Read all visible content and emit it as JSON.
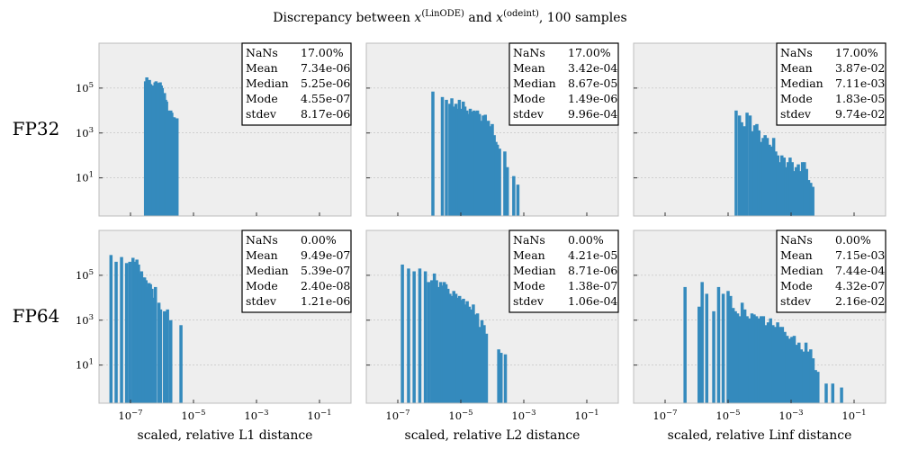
{
  "figure": {
    "title_parts": {
      "pre": "Discrepancy between ",
      "x1": "x",
      "x1_sup": "(LinODE)",
      "mid": " and ",
      "x2": "x",
      "x2_sup": "(odeint)",
      "post": ", 100 samples"
    },
    "row_labels": [
      "FP32",
      "FP64"
    ],
    "column_xlabels": [
      "scaled, relative L1 distance",
      "scaled, relative L2 distance",
      "scaled, relative Linf distance"
    ],
    "stat_keys": [
      "NaNs",
      "Mean",
      "Median",
      "Mode",
      "stdev"
    ],
    "x_tick_labels": [
      {
        "base": "10",
        "exp": "−7"
      },
      {
        "base": "10",
        "exp": "−5"
      },
      {
        "base": "10",
        "exp": "−3"
      },
      {
        "base": "10",
        "exp": "−1"
      }
    ],
    "y_tick_labels": [
      {
        "base": "10",
        "exp": "5"
      },
      {
        "base": "10",
        "exp": "3"
      },
      {
        "base": "10",
        "exp": "1"
      }
    ],
    "colors": {
      "bar": "#348abd",
      "panel_bg": "#eeeeee",
      "panel_border": "#bcbcbc",
      "grid": "#b2b2b2"
    }
  },
  "chart_data": [
    {
      "type": "bar",
      "row": "FP32",
      "xlabel": "",
      "xscale": "log",
      "yscale": "log",
      "xlim": [
        1e-08,
        1
      ],
      "ylim": [
        0.2,
        10000000.0
      ],
      "grid": true,
      "stats": [
        "17.00%",
        "7.34e-06",
        "5.25e-06",
        "4.55e-07",
        "8.17e-06"
      ],
      "bars": [
        [
          3e-07,
          200000.0
        ],
        [
          3.3e-07,
          300000.0
        ],
        [
          3.7e-07,
          150000.0
        ],
        [
          4e-07,
          230000.0
        ],
        [
          4.4e-07,
          150000.0
        ],
        [
          4.9e-07,
          130000.0
        ],
        [
          5.4e-07,
          80000.0
        ],
        [
          6e-07,
          180000.0
        ],
        [
          6.5e-07,
          200000.0
        ],
        [
          7e-07,
          160000.0
        ],
        [
          7.5e-07,
          170000.0
        ],
        [
          8.1e-07,
          100000.0
        ],
        [
          8.8e-07,
          180000.0
        ],
        [
          9.5e-07,
          130000.0
        ],
        [
          1.02e-06,
          100000.0
        ],
        [
          1.1e-06,
          40000.0
        ],
        [
          1.2e-06,
          60000.0
        ],
        [
          1.3e-06,
          30000.0
        ],
        [
          1.4e-06,
          25000.0
        ],
        [
          1.55e-06,
          10000.0
        ],
        [
          1.7e-06,
          9000.0
        ],
        [
          1.9e-06,
          10000.0
        ],
        [
          2.05e-06,
          8000.0
        ],
        [
          2.2e-06,
          5000.0
        ],
        [
          2.45e-06,
          5000.0
        ],
        [
          3e-06,
          4500.0
        ]
      ]
    },
    {
      "type": "bar",
      "row": "FP32",
      "xlabel": "",
      "xscale": "log",
      "yscale": "log",
      "xlim": [
        1e-08,
        1
      ],
      "ylim": [
        0.2,
        10000000.0
      ],
      "grid": true,
      "stats": [
        "17.00%",
        "3.42e-04",
        "8.67e-05",
        "1.49e-06",
        "9.96e-04"
      ],
      "bars": [
        [
          1.3e-06,
          70000.0
        ],
        [
          2.6e-06,
          40000.0
        ],
        [
          3.5e-06,
          30000.0
        ],
        [
          4.5e-06,
          20000.0
        ],
        [
          5.2e-06,
          35000.0
        ],
        [
          6e-06,
          15000.0
        ],
        [
          7e-06,
          20000.0
        ],
        [
          8e-06,
          12000.0
        ],
        [
          9e-06,
          30000.0
        ],
        [
          1.05e-05,
          12000.0
        ],
        [
          1.2e-05,
          25000.0
        ],
        [
          1.35e-05,
          15000.0
        ],
        [
          1.55e-05,
          10000.0
        ],
        [
          1.75e-05,
          7000.0
        ],
        [
          2e-05,
          12000.0
        ],
        [
          2.3e-05,
          9000.0
        ],
        [
          2.65e-05,
          10000.0
        ],
        [
          3e-05,
          9000.0
        ],
        [
          3.4e-05,
          10000.0
        ],
        [
          3.9e-05,
          7000.0
        ],
        [
          4.5e-05,
          3500.0
        ],
        [
          5.2e-05,
          6000.0
        ],
        [
          6e-05,
          6500.0
        ],
        [
          7.5e-05,
          3500.0
        ],
        [
          8.5e-05,
          2000.0
        ],
        [
          0.0001,
          2500.0
        ],
        [
          0.000115,
          800.0
        ],
        [
          0.00013,
          400.0
        ],
        [
          0.000145,
          300.0
        ],
        [
          0.00017,
          200.0
        ],
        [
          0.00025,
          150.0
        ],
        [
          0.0003,
          30.0
        ],
        [
          0.00048,
          12.0
        ],
        [
          0.00065,
          5.0
        ]
      ]
    },
    {
      "type": "bar",
      "row": "FP32",
      "xlabel": "",
      "xscale": "log",
      "yscale": "log",
      "xlim": [
        1e-08,
        1
      ],
      "ylim": [
        0.2,
        10000000.0
      ],
      "grid": true,
      "stats": [
        "17.00%",
        "3.87e-02",
        "7.11e-03",
        "1.83e-05",
        "9.74e-02"
      ],
      "bars": [
        [
          1.8e-05,
          10000.0
        ],
        [
          2.3e-05,
          6000.0
        ],
        [
          2.7e-05,
          3000.0
        ],
        [
          3.3e-05,
          2000.0
        ],
        [
          4e-05,
          8000.0
        ],
        [
          5e-05,
          6000.0
        ],
        [
          6e-05,
          1200.0
        ],
        [
          7e-05,
          2200.0
        ],
        [
          8.2e-05,
          2500.0
        ],
        [
          9.5e-05,
          1300.0
        ],
        [
          0.000112,
          400.0
        ],
        [
          0.00013,
          600.0
        ],
        [
          0.00015,
          800.0
        ],
        [
          0.000175,
          600.0
        ],
        [
          0.000205,
          300.0
        ],
        [
          0.00024,
          250.0
        ],
        [
          0.00028,
          600.0
        ],
        [
          0.000325,
          150.0
        ],
        [
          0.00038,
          100.0
        ],
        [
          0.00044,
          50.0
        ],
        [
          0.00051,
          100.0
        ],
        [
          0.0006,
          80.0
        ],
        [
          0.0007,
          30.0
        ],
        [
          0.0008,
          50.0
        ],
        [
          0.00093,
          80.0
        ],
        [
          0.00108,
          50.0
        ],
        [
          0.00125,
          20.0
        ],
        [
          0.00145,
          30.0
        ],
        [
          0.0017,
          40.0
        ],
        [
          0.00195,
          20.0
        ],
        [
          0.0023,
          50.0
        ],
        [
          0.00265,
          50.0
        ],
        [
          0.0031,
          25.0
        ],
        [
          0.0036,
          8.0
        ],
        [
          0.0042,
          6.0
        ],
        [
          0.0049,
          4.0
        ]
      ]
    },
    {
      "type": "bar",
      "row": "FP64",
      "xlabel": "scaled, relative L1 distance",
      "xscale": "log",
      "yscale": "log",
      "xlim": [
        1e-08,
        1
      ],
      "ylim": [
        0.2,
        10000000.0
      ],
      "grid": true,
      "stats": [
        "0.00%",
        "9.49e-07",
        "5.39e-07",
        "2.40e-08",
        "1.21e-06"
      ],
      "bars": [
        [
          2.4e-08,
          800000.0
        ],
        [
          3.5e-08,
          400000.0
        ],
        [
          5.2e-08,
          650000.0
        ],
        [
          7.5e-08,
          350000.0
        ],
        [
          9.5e-08,
          400000.0
        ],
        [
          1.2e-07,
          600000.0
        ],
        [
          1.4e-07,
          400000.0
        ],
        [
          1.6e-07,
          500000.0
        ],
        [
          1.8e-07,
          300000.0
        ],
        [
          2e-07,
          120000.0
        ],
        [
          2.25e-07,
          150000.0
        ],
        [
          2.5e-07,
          80000.0
        ],
        [
          2.8e-07,
          80000.0
        ],
        [
          3.1e-07,
          60000.0
        ],
        [
          3.5e-07,
          30000.0
        ],
        [
          3.9e-07,
          45000.0
        ],
        [
          4.3e-07,
          40000.0
        ],
        [
          4.8e-07,
          25000.0
        ],
        [
          5.4e-07,
          10000.0
        ],
        [
          6.2e-07,
          30000.0
        ],
        [
          8e-07,
          6000.0
        ],
        [
          9e-07,
          3000.0
        ],
        [
          1.2e-06,
          2500.0
        ],
        [
          1.5e-06,
          3000.0
        ],
        [
          1.9e-06,
          1000.0
        ],
        [
          4e-06,
          600.0
        ]
      ]
    },
    {
      "type": "bar",
      "row": "FP64",
      "xlabel": "scaled, relative L2 distance",
      "xscale": "log",
      "yscale": "log",
      "xlim": [
        1e-08,
        1
      ],
      "ylim": [
        0.2,
        10000000.0
      ],
      "grid": true,
      "stats": [
        "0.00%",
        "4.21e-05",
        "8.71e-06",
        "1.38e-07",
        "1.06e-04"
      ],
      "bars": [
        [
          1.4e-07,
          300000.0
        ],
        [
          2.2e-07,
          200000.0
        ],
        [
          3.3e-07,
          150000.0
        ],
        [
          5e-07,
          200000.0
        ],
        [
          7.5e-07,
          150000.0
        ],
        [
          9.5e-07,
          50000.0
        ],
        [
          1.2e-06,
          60000.0
        ],
        [
          1.45e-06,
          120000.0
        ],
        [
          1.7e-06,
          60000.0
        ],
        [
          2e-06,
          30000.0
        ],
        [
          2.3e-06,
          50000.0
        ],
        [
          2.6e-06,
          35000.0
        ],
        [
          3e-06,
          50000.0
        ],
        [
          3.4e-06,
          40000.0
        ],
        [
          3.9e-06,
          25000.0
        ],
        [
          4.5e-06,
          15000.0
        ],
        [
          5.2e-06,
          12000.0
        ],
        [
          6e-06,
          20000.0
        ],
        [
          7e-06,
          15000.0
        ],
        [
          8e-06,
          10000.0
        ],
        [
          9.2e-06,
          12000.0
        ],
        [
          1.06e-05,
          8000.0
        ],
        [
          1.22e-05,
          9000.0
        ],
        [
          1.4e-05,
          5000.0
        ],
        [
          1.6e-05,
          7000.0
        ],
        [
          1.85e-05,
          4000.0
        ],
        [
          2.15e-05,
          3000.0
        ],
        [
          2.5e-05,
          5000.0
        ],
        [
          2.9e-05,
          1800.0
        ],
        [
          3.4e-05,
          2000.0
        ],
        [
          4e-05,
          500.0
        ],
        [
          4.7e-05,
          1000.0
        ],
        [
          5.5e-05,
          600.0
        ],
        [
          6.5e-05,
          250.0
        ],
        [
          0.00016,
          50.0
        ],
        [
          0.00019,
          35.0
        ],
        [
          0.00026,
          30.0
        ]
      ]
    },
    {
      "type": "bar",
      "row": "FP64",
      "xlabel": "scaled, relative Linf distance",
      "xscale": "log",
      "yscale": "log",
      "xlim": [
        1e-08,
        1
      ],
      "ylim": [
        0.2,
        10000000.0
      ],
      "grid": true,
      "stats": [
        "0.00%",
        "7.15e-03",
        "7.44e-04",
        "4.32e-07",
        "2.16e-02"
      ],
      "bars": [
        [
          4.3e-07,
          30000.0
        ],
        [
          1.2e-06,
          4000.0
        ],
        [
          1.5e-06,
          50000.0
        ],
        [
          2.1e-06,
          15000.0
        ],
        [
          3.5e-06,
          2500.0
        ],
        [
          5e-06,
          30000.0
        ],
        [
          7e-06,
          15000.0
        ],
        [
          1e-05,
          20000.0
        ],
        [
          1.2e-05,
          12000.0
        ],
        [
          1.45e-05,
          3500.0
        ],
        [
          1.7e-05,
          2500.0
        ],
        [
          2e-05,
          2000.0
        ],
        [
          2.4e-05,
          1500.0
        ],
        [
          2.8e-05,
          6000.0
        ],
        [
          3.4e-05,
          3000.0
        ],
        [
          4e-05,
          1500.0
        ],
        [
          4.8e-05,
          1200.0
        ],
        [
          5.7e-05,
          2000.0
        ],
        [
          6.7e-05,
          1800.0
        ],
        [
          8e-05,
          1500.0
        ],
        [
          9.5e-05,
          1200.0
        ],
        [
          0.000112,
          1500.0
        ],
        [
          0.000133,
          1500.0
        ],
        [
          0.000158,
          600.0
        ],
        [
          0.000188,
          800.0
        ],
        [
          0.000223,
          1200.0
        ],
        [
          0.000265,
          600.0
        ],
        [
          0.000315,
          500.0
        ],
        [
          0.000375,
          800.0
        ],
        [
          0.000445,
          500.0
        ],
        [
          0.00053,
          500.0
        ],
        [
          0.00063,
          300.0
        ],
        [
          0.00075,
          200.0
        ],
        [
          0.00089,
          150.0
        ],
        [
          0.00106,
          180.0
        ],
        [
          0.00126,
          200.0
        ],
        [
          0.0015,
          80.0
        ],
        [
          0.00178,
          100.0
        ],
        [
          0.0021,
          50.0
        ],
        [
          0.0025,
          40.0
        ],
        [
          0.00297,
          100.0
        ],
        [
          0.00353,
          40.0
        ],
        [
          0.0042,
          50.0
        ],
        [
          0.005,
          20.0
        ],
        [
          0.00595,
          6.0
        ],
        [
          0.0071,
          5.0
        ],
        [
          0.013,
          1.5
        ],
        [
          0.021,
          1.5
        ],
        [
          0.04,
          1.0
        ]
      ]
    }
  ]
}
